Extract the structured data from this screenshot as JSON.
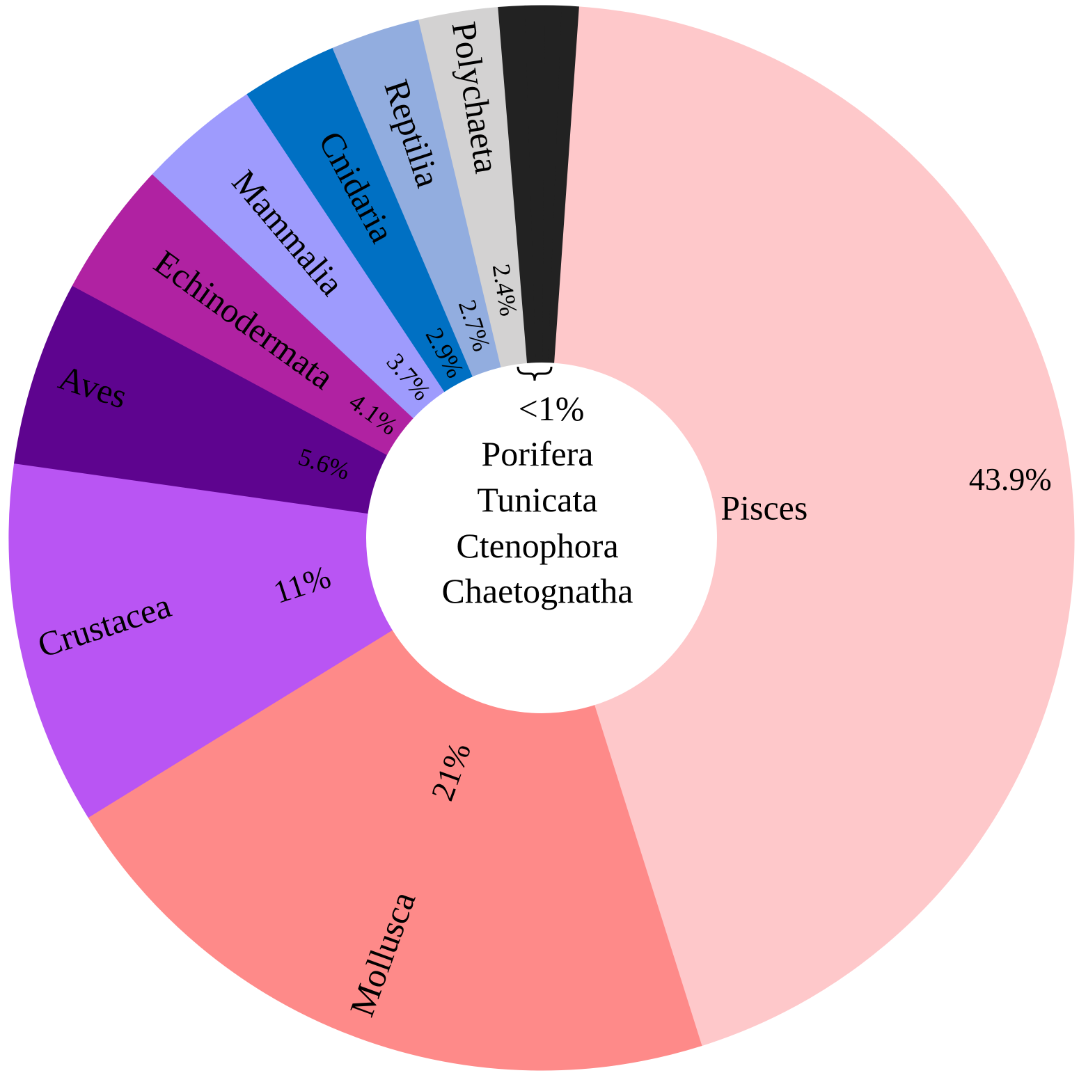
{
  "chart_data": {
    "type": "pie",
    "donut": true,
    "start_angle_deg": 4,
    "slices": [
      {
        "name": "Pisces",
        "value": 43.9,
        "value_label": "43.9%",
        "color": "#fec8ca"
      },
      {
        "name": "Mollusca",
        "value": 21,
        "value_label": "21%",
        "color": "#fe8a89"
      },
      {
        "name": "Crustacea",
        "value": 11,
        "value_label": "11%",
        "color": "#b955f3"
      },
      {
        "name": "Aves",
        "value": 5.6,
        "value_label": "5.6%",
        "color": "#5e048f"
      },
      {
        "name": "Echinodermata",
        "value": 4.1,
        "value_label": "4.1%",
        "color": "#b022a2"
      },
      {
        "name": "Mammalia",
        "value": 3.7,
        "value_label": "3.7%",
        "color": "#9e9bfd"
      },
      {
        "name": "Cnidaria",
        "value": 2.9,
        "value_label": "2.9%",
        "color": "#0070c3"
      },
      {
        "name": "Reptilia",
        "value": 2.7,
        "value_label": "2.7%",
        "color": "#92addf"
      },
      {
        "name": "Polychaeta",
        "value": 2.4,
        "value_label": "2.4%",
        "color": "#d3d2d2"
      },
      {
        "name": "Porifera",
        "value": 0.8,
        "value_label": "",
        "color": "#222222"
      },
      {
        "name": "Tunicata",
        "value": 0.6,
        "value_label": "",
        "color": "#222222"
      },
      {
        "name": "Ctenophora",
        "value": 0.5,
        "value_label": "",
        "color": "#222222"
      },
      {
        "name": "Chaetognatha",
        "value": 0.5,
        "value_label": "",
        "color": "#222222"
      }
    ],
    "small_group": {
      "label": "<1%",
      "members": [
        "Porifera",
        "Tunicata",
        "Ctenophora",
        "Chaetognatha"
      ]
    }
  }
}
